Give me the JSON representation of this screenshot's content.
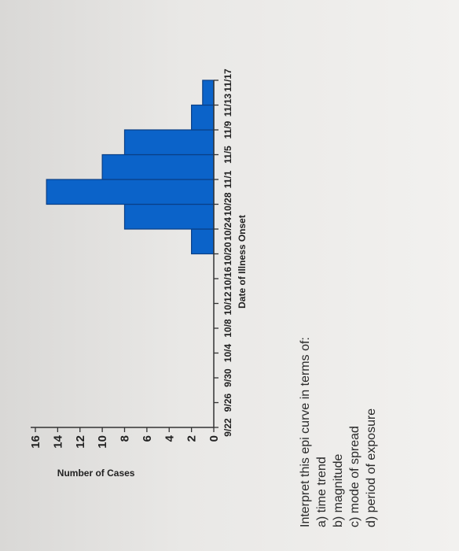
{
  "chart_data": {
    "type": "bar",
    "title": "",
    "xlabel": "Date of Illness Onset",
    "ylabel": "Number of Cases",
    "x_tick_labels": [
      "9/22",
      "9/26",
      "9/30",
      "10/4",
      "10/8",
      "10/12",
      "10/16",
      "10/20",
      "10/24",
      "10/28",
      "11/1",
      "11/5",
      "11/9",
      "11/13",
      "11/17"
    ],
    "y_ticks": [
      0,
      2,
      4,
      6,
      8,
      10,
      12,
      14,
      16
    ],
    "ylim": [
      0,
      16
    ],
    "bins": [
      {
        "start": "10/20",
        "end": "10/24",
        "value": 2
      },
      {
        "start": "10/24",
        "end": "10/28",
        "value": 8
      },
      {
        "start": "10/28",
        "end": "11/1",
        "value": 15
      },
      {
        "start": "11/1",
        "end": "11/5",
        "value": 10
      },
      {
        "start": "11/5",
        "end": "11/9",
        "value": 8
      },
      {
        "start": "11/9",
        "end": "11/13",
        "value": 2
      },
      {
        "start": "11/13",
        "end": "11/17",
        "value": 1
      }
    ],
    "bar_color": "#0b63c9",
    "grid": false
  },
  "question": {
    "prompt": "Interpret this epi curve in terms of:",
    "items": [
      "a) time trend",
      "b) magnitude",
      "c) mode of spread",
      "d) period of exposure"
    ]
  }
}
